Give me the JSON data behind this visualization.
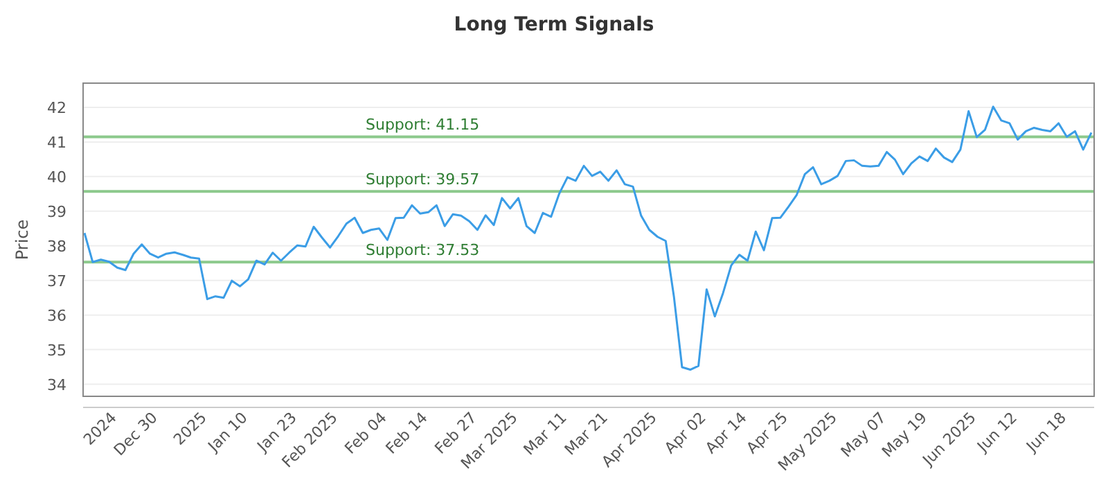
{
  "chart_data": {
    "type": "line",
    "title": "Long Term Signals",
    "ylabel": "Price",
    "categories": [
      null,
      null,
      null,
      null,
      "2024",
      null,
      null,
      null,
      null,
      "Dec 30",
      null,
      null,
      null,
      null,
      null,
      "2025",
      null,
      null,
      null,
      null,
      "Jan 10",
      null,
      null,
      null,
      null,
      null,
      "Jan 23",
      null,
      null,
      null,
      null,
      "Feb 2025",
      null,
      null,
      null,
      null,
      null,
      "Feb 04",
      null,
      null,
      null,
      null,
      "Feb 14",
      null,
      null,
      null,
      null,
      null,
      "Feb 27",
      null,
      null,
      null,
      null,
      "Mar 2025",
      null,
      null,
      null,
      null,
      null,
      "Mar 11",
      null,
      null,
      null,
      null,
      "Mar 21",
      null,
      null,
      null,
      null,
      null,
      "Apr 2025",
      null,
      null,
      null,
      null,
      null,
      "Apr 02",
      null,
      null,
      null,
      null,
      "Apr 14",
      null,
      null,
      null,
      null,
      "Apr 25",
      null,
      null,
      null,
      null,
      null,
      "May 2025",
      null,
      null,
      null,
      null,
      null,
      "May 07",
      null,
      null,
      null,
      null,
      "May 19",
      null,
      null,
      null,
      null,
      null,
      "Jun 2025",
      null,
      null,
      null,
      null,
      "Jun 12",
      null,
      null,
      null,
      null,
      null,
      "Jun 18",
      null,
      null,
      null
    ],
    "series": [
      {
        "color": "#3b9de6",
        "values": [
          38.37,
          37.53,
          37.6,
          37.54,
          37.37,
          37.3,
          37.77,
          38.04,
          37.77,
          37.66,
          37.77,
          37.81,
          37.74,
          37.66,
          37.63,
          36.46,
          36.54,
          36.5,
          36.99,
          36.83,
          37.03,
          37.57,
          37.46,
          37.8,
          37.57,
          37.8,
          38.01,
          37.98,
          38.55,
          38.24,
          37.95,
          38.28,
          38.64,
          38.81,
          38.37,
          38.46,
          38.5,
          38.17,
          38.8,
          38.81,
          39.17,
          38.93,
          38.97,
          39.17,
          38.57,
          38.91,
          38.87,
          38.71,
          38.46,
          38.88,
          38.6,
          39.38,
          39.08,
          39.38,
          38.57,
          38.37,
          38.95,
          38.84,
          39.51,
          39.98,
          39.88,
          40.31,
          40.02,
          40.14,
          39.88,
          40.18,
          39.78,
          39.71,
          38.87,
          38.46,
          38.26,
          38.14,
          36.54,
          34.49,
          34.42,
          34.53,
          36.74,
          35.96,
          36.63,
          37.43,
          37.74,
          37.57,
          38.41,
          37.87,
          38.8,
          38.81,
          39.13,
          39.47,
          40.07,
          40.27,
          39.78,
          39.88,
          40.02,
          40.45,
          40.47,
          40.31,
          40.29,
          40.31,
          40.71,
          40.49,
          40.07,
          40.38,
          40.58,
          40.45,
          40.81,
          40.55,
          40.42,
          40.78,
          41.89,
          41.14,
          41.35,
          42.02,
          41.62,
          41.54,
          41.07,
          41.31,
          41.41,
          41.35,
          41.31,
          41.54,
          41.15,
          41.31,
          40.78,
          41.27
        ]
      }
    ],
    "ylim": [
      33.65,
      42.7
    ],
    "yticks": [
      34,
      35,
      36,
      37,
      38,
      39,
      40,
      41,
      42
    ],
    "grid": "y",
    "marker": "none",
    "line_style": "solid",
    "ref_lines": [
      {
        "axis": "y",
        "value": 41.15,
        "label": "Support: 41.15",
        "color": "#8cc98c"
      },
      {
        "axis": "y",
        "value": 39.57,
        "label": "Support: 39.57",
        "color": "#8cc98c"
      },
      {
        "axis": "y",
        "value": 37.53,
        "label": "Support: 37.53",
        "color": "#8cc98c"
      }
    ]
  }
}
